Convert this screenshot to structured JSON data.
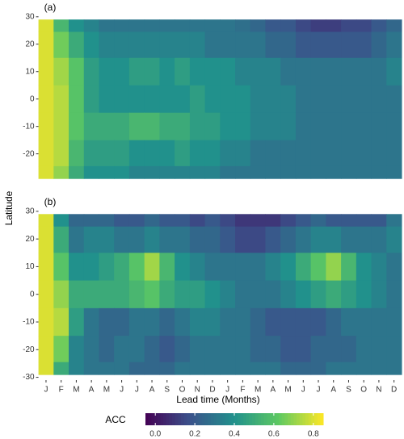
{
  "chart_data": [
    {
      "type": "heatmap",
      "label": "(a)",
      "colormap": "viridis",
      "y": [
        29,
        20,
        10,
        0,
        -10,
        -20,
        -29
      ],
      "ylim": [
        -31,
        32
      ],
      "yticks": [
        30,
        20,
        10,
        0,
        -10,
        -20
      ],
      "values": [
        [
          0.8,
          0.55,
          0.4,
          0.35,
          0.3,
          0.3,
          0.3,
          0.3,
          0.3,
          0.3,
          0.3,
          0.3,
          0.3,
          0.28,
          0.25,
          0.2,
          0.2,
          0.15,
          0.12,
          0.12,
          0.15,
          0.15,
          0.2,
          0.25
        ],
        [
          0.8,
          0.65,
          0.5,
          0.4,
          0.35,
          0.35,
          0.35,
          0.35,
          0.35,
          0.35,
          0.35,
          0.3,
          0.3,
          0.3,
          0.3,
          0.25,
          0.25,
          0.2,
          0.2,
          0.2,
          0.2,
          0.2,
          0.25,
          0.3
        ],
        [
          0.8,
          0.72,
          0.6,
          0.45,
          0.4,
          0.4,
          0.45,
          0.45,
          0.4,
          0.45,
          0.4,
          0.4,
          0.4,
          0.35,
          0.35,
          0.35,
          0.3,
          0.3,
          0.3,
          0.3,
          0.3,
          0.3,
          0.3,
          0.35
        ],
        [
          0.8,
          0.75,
          0.6,
          0.45,
          0.4,
          0.4,
          0.4,
          0.4,
          0.4,
          0.4,
          0.45,
          0.4,
          0.4,
          0.4,
          0.35,
          0.35,
          0.35,
          0.3,
          0.3,
          0.3,
          0.3,
          0.3,
          0.3,
          0.3
        ],
        [
          0.8,
          0.75,
          0.6,
          0.5,
          0.5,
          0.5,
          0.55,
          0.55,
          0.5,
          0.5,
          0.45,
          0.45,
          0.4,
          0.4,
          0.35,
          0.35,
          0.35,
          0.3,
          0.3,
          0.3,
          0.3,
          0.3,
          0.3,
          0.3
        ],
        [
          0.8,
          0.75,
          0.55,
          0.45,
          0.45,
          0.45,
          0.4,
          0.4,
          0.4,
          0.45,
          0.4,
          0.4,
          0.35,
          0.35,
          0.3,
          0.3,
          0.3,
          0.3,
          0.3,
          0.3,
          0.3,
          0.3,
          0.3,
          0.3
        ],
        [
          0.8,
          0.7,
          0.5,
          0.4,
          0.4,
          0.4,
          0.35,
          0.35,
          0.35,
          0.35,
          0.35,
          0.35,
          0.3,
          0.3,
          0.3,
          0.3,
          0.3,
          0.3,
          0.3,
          0.3,
          0.3,
          0.3,
          0.3,
          0.3
        ]
      ]
    },
    {
      "type": "heatmap",
      "label": "(b)",
      "colormap": "viridis",
      "xlabel": "Lead time (Months)",
      "ylabel": "Latitude",
      "categories": [
        "J",
        "F",
        "M",
        "A",
        "M",
        "J",
        "J",
        "A",
        "S",
        "O",
        "N",
        "D",
        "J",
        "F",
        "M",
        "A",
        "M",
        "J",
        "J",
        "A",
        "S",
        "O",
        "N",
        "D"
      ],
      "y": [
        29,
        20,
        10,
        0,
        -10,
        -20,
        -29
      ],
      "ylim": [
        -31,
        32
      ],
      "yticks": [
        30,
        20,
        10,
        0,
        -10,
        -20,
        -30
      ],
      "values": [
        [
          0.8,
          0.4,
          0.25,
          0.25,
          0.25,
          0.2,
          0.2,
          0.25,
          0.2,
          0.2,
          0.15,
          0.2,
          0.15,
          0.1,
          0.1,
          0.1,
          0.15,
          0.2,
          0.25,
          0.2,
          0.2,
          0.2,
          0.2,
          0.3
        ],
        [
          0.8,
          0.5,
          0.3,
          0.35,
          0.35,
          0.3,
          0.3,
          0.35,
          0.3,
          0.3,
          0.25,
          0.25,
          0.2,
          0.15,
          0.15,
          0.2,
          0.25,
          0.3,
          0.35,
          0.35,
          0.3,
          0.3,
          0.3,
          0.35
        ],
        [
          0.8,
          0.6,
          0.4,
          0.4,
          0.45,
          0.5,
          0.6,
          0.72,
          0.55,
          0.4,
          0.35,
          0.3,
          0.3,
          0.3,
          0.3,
          0.35,
          0.4,
          0.5,
          0.6,
          0.7,
          0.55,
          0.4,
          0.35,
          0.3
        ],
        [
          0.8,
          0.7,
          0.5,
          0.5,
          0.5,
          0.5,
          0.55,
          0.6,
          0.5,
          0.45,
          0.45,
          0.4,
          0.35,
          0.3,
          0.3,
          0.3,
          0.35,
          0.4,
          0.45,
          0.5,
          0.45,
          0.4,
          0.35,
          0.3
        ],
        [
          0.8,
          0.75,
          0.45,
          0.3,
          0.25,
          0.25,
          0.3,
          0.3,
          0.25,
          0.3,
          0.35,
          0.35,
          0.3,
          0.3,
          0.25,
          0.2,
          0.2,
          0.2,
          0.2,
          0.25,
          0.3,
          0.3,
          0.3,
          0.3
        ],
        [
          0.8,
          0.65,
          0.35,
          0.3,
          0.25,
          0.3,
          0.3,
          0.25,
          0.2,
          0.25,
          0.3,
          0.3,
          0.3,
          0.3,
          0.25,
          0.25,
          0.2,
          0.2,
          0.25,
          0.25,
          0.25,
          0.3,
          0.3,
          0.3
        ],
        [
          0.8,
          0.5,
          0.35,
          0.3,
          0.3,
          0.3,
          0.25,
          0.25,
          0.25,
          0.3,
          0.3,
          0.3,
          0.3,
          0.3,
          0.3,
          0.3,
          0.25,
          0.25,
          0.25,
          0.3,
          0.3,
          0.3,
          0.3,
          0.3
        ]
      ],
      "colorbar": {
        "title": "ACC",
        "lim": [
          -0.05,
          0.85
        ],
        "ticks": [
          {
            "value": 0,
            "label": "0.0"
          },
          0.2,
          0.4,
          0.6,
          0.8
        ]
      }
    }
  ]
}
